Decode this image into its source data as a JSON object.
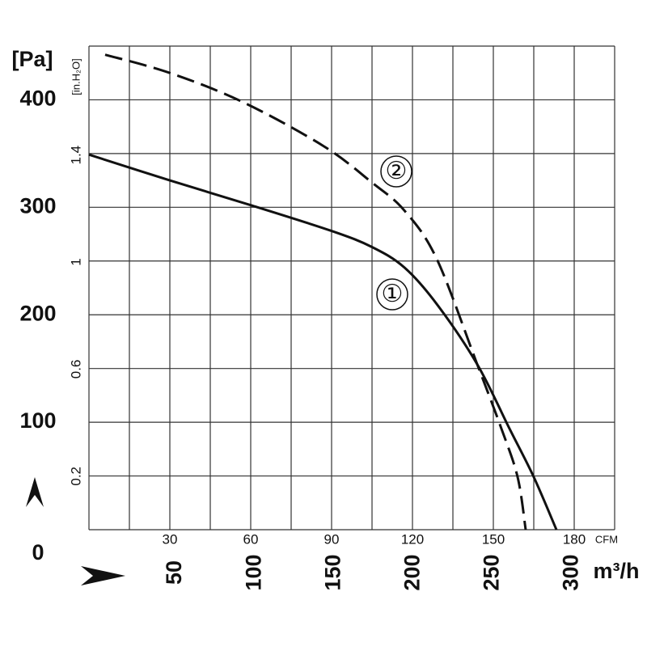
{
  "chart_data": {
    "type": "line",
    "y_unit": "[Pa]",
    "y2_unit": "[in.H₂O]",
    "x_unit": "CFM",
    "x2_unit": "m³/h",
    "xlim": [
      0,
      195
    ],
    "xticks": [
      30,
      60,
      90,
      120,
      150,
      180
    ],
    "x2lim": [
      0,
      331.3
    ],
    "x2ticks": [
      50,
      100,
      150,
      200,
      250,
      300
    ],
    "ylim": [
      0,
      450
    ],
    "yticks": [
      0,
      100,
      200,
      300,
      400
    ],
    "y2lim": [
      0,
      1.807
    ],
    "y2ticks": [
      0.2,
      0.6,
      1.0,
      1.4
    ],
    "xgrid": [
      0,
      15,
      30,
      45,
      60,
      75,
      90,
      105,
      120,
      135,
      150,
      165,
      180,
      195
    ],
    "ygrid": [
      0,
      50,
      100,
      150,
      200,
      250,
      300,
      350,
      400,
      450
    ],
    "grid": true,
    "series": [
      {
        "name": "①",
        "color": "#111111",
        "dashed": false,
        "x": [
          0,
          30,
          60,
          90,
          105,
          117,
          129,
          144,
          156,
          165,
          173.4
        ],
        "values": [
          349,
          325,
          302,
          278,
          263,
          244,
          210,
          154,
          94,
          49,
          0
        ]
      },
      {
        "name": "②",
        "color": "#111111",
        "dashed": true,
        "x": [
          6,
          30,
          57,
          87,
          105,
          117,
          129,
          144,
          153,
          159,
          162
        ],
        "values": [
          442,
          425,
          398,
          357,
          323,
          297,
          252,
          154,
          94,
          49,
          0
        ]
      }
    ]
  }
}
